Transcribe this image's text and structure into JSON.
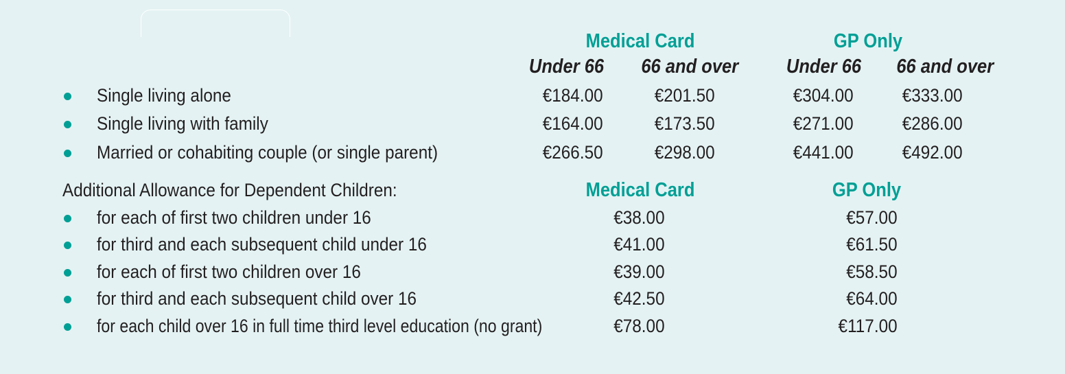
{
  "header": {
    "medical_card": "Medical Card",
    "gp_only": "GP Only",
    "under_66": "Under 66",
    "over_66": "66 and over"
  },
  "main_rows": [
    {
      "label": "Single living alone",
      "mc_under": "€184.00",
      "mc_over": "€201.50",
      "gp_under": "€304.00",
      "gp_over": "€333.00"
    },
    {
      "label": "Single living with family",
      "mc_under": "€164.00",
      "mc_over": "€173.50",
      "gp_under": "€271.00",
      "gp_over": "€286.00"
    },
    {
      "label": "Married or cohabiting couple (or single parent)",
      "mc_under": "€266.50",
      "mc_over": "€298.00",
      "gp_under": "€441.00",
      "gp_over": "€492.00"
    }
  ],
  "children": {
    "heading": "Additional Allowance for Dependent Children:",
    "medical_card": "Medical Card",
    "gp_only": "GP Only",
    "rows": [
      {
        "label": "for each of first two children under 16",
        "mc": "€38.00",
        "gp": "€57.00"
      },
      {
        "label": "for third and each subsequent child under 16",
        "mc": "€41.00",
        "gp": "€61.50"
      },
      {
        "label": "for each of first two children over 16",
        "mc": "€39.00",
        "gp": "€58.50"
      },
      {
        "label": "for third and each subsequent child over 16",
        "mc": "€42.50",
        "gp": "€64.00"
      },
      {
        "label": "for each child over 16 in full time third level education (no grant)",
        "mc": "€78.00",
        "gp": "€117.00"
      }
    ]
  },
  "colors": {
    "accent": "#009f95",
    "background": "#e4f2f3",
    "text": "#231f20"
  }
}
